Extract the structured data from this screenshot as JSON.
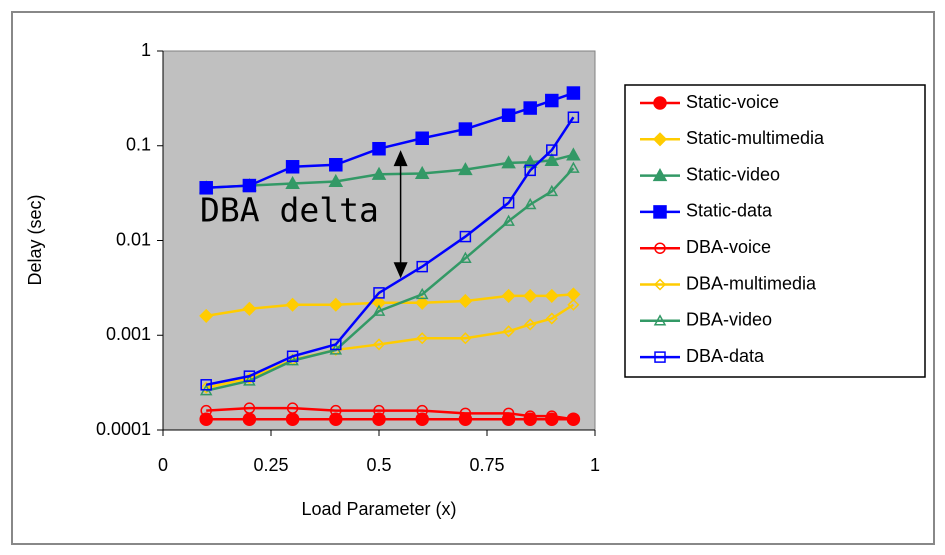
{
  "chart_data": {
    "type": "line",
    "x_label": "Load Parameter (x)",
    "y_label": "Delay (sec)",
    "x": [
      0.1,
      0.2,
      0.3,
      0.4,
      0.5,
      0.6,
      0.7,
      0.8,
      0.85,
      0.9,
      0.95
    ],
    "xlim": [
      0,
      1
    ],
    "xticks": [
      0,
      0.25,
      0.5,
      0.75,
      1
    ],
    "ylim": [
      0.0001,
      1
    ],
    "yticks": [
      0.0001,
      0.001,
      0.01,
      0.1,
      1
    ],
    "y_scale": "log",
    "legend": "right",
    "series": [
      {
        "name": "Static-voice",
        "color": "#ff0000",
        "marker": "circle",
        "filled": true,
        "values": [
          0.00013,
          0.00013,
          0.00013,
          0.00013,
          0.00013,
          0.00013,
          0.00013,
          0.00013,
          0.00013,
          0.00013,
          0.00013
        ]
      },
      {
        "name": "Static-multimedia",
        "color": "#ffcc00",
        "marker": "diamond",
        "filled": true,
        "values": [
          0.0016,
          0.0019,
          0.0021,
          0.0021,
          0.0022,
          0.0022,
          0.0023,
          0.0026,
          0.0026,
          0.0026,
          0.0027
        ]
      },
      {
        "name": "Static-video",
        "color": "#339966",
        "marker": "triangle",
        "filled": true,
        "values": [
          0.036,
          0.038,
          0.04,
          0.042,
          0.05,
          0.051,
          0.056,
          0.066,
          0.067,
          0.07,
          0.08
        ]
      },
      {
        "name": "Static-data",
        "color": "#0000ff",
        "marker": "square",
        "filled": true,
        "values": [
          0.036,
          0.038,
          0.06,
          0.063,
          0.093,
          0.12,
          0.15,
          0.21,
          0.25,
          0.3,
          0.36
        ]
      },
      {
        "name": "DBA-voice",
        "color": "#ff0000",
        "marker": "circle",
        "filled": false,
        "values": [
          0.00016,
          0.00017,
          0.00017,
          0.00016,
          0.00016,
          0.00016,
          0.00015,
          0.00015,
          0.00014,
          0.00014,
          0.00013
        ]
      },
      {
        "name": "DBA-multimedia",
        "color": "#ffcc00",
        "marker": "diamond",
        "filled": false,
        "values": [
          0.00028,
          0.00035,
          0.00055,
          0.0007,
          0.0008,
          0.00093,
          0.00093,
          0.0011,
          0.0013,
          0.0015,
          0.0021
        ]
      },
      {
        "name": "DBA-video",
        "color": "#339966",
        "marker": "triangle",
        "filled": false,
        "values": [
          0.00026,
          0.00033,
          0.00054,
          0.0007,
          0.0018,
          0.0027,
          0.0065,
          0.016,
          0.024,
          0.033,
          0.058
        ]
      },
      {
        "name": "DBA-data",
        "color": "#0000ff",
        "marker": "square",
        "filled": false,
        "values": [
          0.0003,
          0.00037,
          0.0006,
          0.0008,
          0.0028,
          0.0053,
          0.011,
          0.025,
          0.055,
          0.09,
          0.2
        ]
      }
    ],
    "annotation": {
      "text": "DBA delta",
      "x": 0.55,
      "y_from": 0.09,
      "y_to": 0.004
    }
  }
}
